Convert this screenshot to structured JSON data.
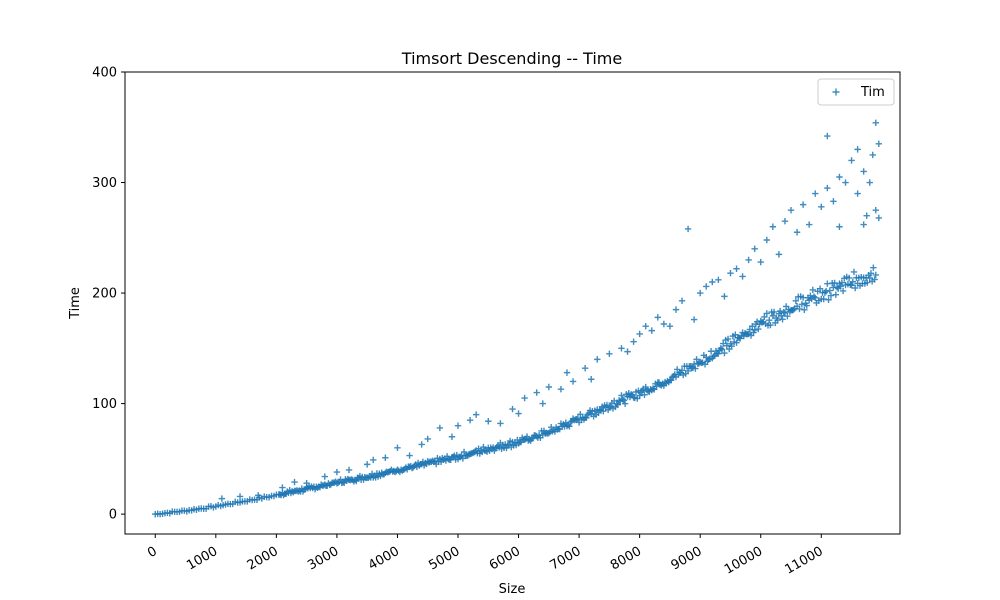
{
  "chart_data": {
    "type": "scatter",
    "title": "Timsort Descending -- Time",
    "xlabel": "Size",
    "ylabel": "Time",
    "xlim": [
      -500,
      12300
    ],
    "ylim": [
      -18,
      400
    ],
    "x_ticks": [
      0,
      1000,
      2000,
      3000,
      4000,
      5000,
      6000,
      7000,
      8000,
      9000,
      10000,
      11000
    ],
    "y_ticks": [
      0,
      100,
      200,
      300,
      400
    ],
    "x_tick_labels": [
      "0",
      "1000",
      "2000",
      "3000",
      "4000",
      "5000",
      "6000",
      "7000",
      "8000",
      "9000",
      "10000",
      "11000"
    ],
    "y_tick_labels": [
      "0",
      "100",
      "200",
      "300",
      "400"
    ],
    "x_tick_rotation": 30,
    "grid": false,
    "legend": {
      "position": "top-right",
      "entries": [
        "Tim"
      ]
    },
    "marker": "+",
    "color": "#1f77b4",
    "series": [
      {
        "name": "Tim",
        "baseline_curve": {
          "x": [
            0,
            500,
            1000,
            1500,
            2000,
            2500,
            3000,
            3500,
            4000,
            4500,
            5000,
            5500,
            6000,
            6500,
            7000,
            7500,
            8000,
            8500,
            9000,
            9500,
            10000,
            10500,
            11000,
            11500,
            11900
          ],
          "y": [
            0,
            3,
            7,
            12,
            17,
            22,
            28,
            33,
            39,
            45,
            51,
            58,
            64,
            73,
            85,
            97,
            108,
            121,
            136,
            152,
            171,
            184,
            196,
            207,
            216
          ]
        },
        "outliers": [
          [
            1100,
            14
          ],
          [
            1400,
            16
          ],
          [
            1700,
            17
          ],
          [
            2100,
            24
          ],
          [
            2300,
            29
          ],
          [
            2500,
            28
          ],
          [
            2800,
            34
          ],
          [
            3000,
            38
          ],
          [
            3200,
            40
          ],
          [
            3500,
            45
          ],
          [
            3600,
            49
          ],
          [
            3800,
            51
          ],
          [
            4000,
            60
          ],
          [
            4200,
            53
          ],
          [
            4400,
            63
          ],
          [
            4500,
            68
          ],
          [
            4700,
            78
          ],
          [
            4900,
            70
          ],
          [
            5000,
            80
          ],
          [
            5200,
            85
          ],
          [
            5300,
            90
          ],
          [
            5500,
            84
          ],
          [
            5700,
            82
          ],
          [
            5900,
            95
          ],
          [
            6000,
            91
          ],
          [
            6100,
            105
          ],
          [
            6300,
            110
          ],
          [
            6400,
            100
          ],
          [
            6500,
            115
          ],
          [
            6700,
            113
          ],
          [
            6800,
            128
          ],
          [
            6900,
            120
          ],
          [
            7100,
            132
          ],
          [
            7200,
            122
          ],
          [
            7300,
            140
          ],
          [
            7500,
            145
          ],
          [
            7700,
            150
          ],
          [
            7800,
            147
          ],
          [
            7900,
            156
          ],
          [
            8000,
            163
          ],
          [
            8100,
            170
          ],
          [
            8200,
            166
          ],
          [
            8300,
            178
          ],
          [
            8400,
            172
          ],
          [
            8500,
            170
          ],
          [
            8600,
            185
          ],
          [
            8700,
            193
          ],
          [
            8800,
            258
          ],
          [
            8900,
            176
          ],
          [
            9000,
            200
          ],
          [
            9100,
            206
          ],
          [
            9200,
            210
          ],
          [
            9300,
            212
          ],
          [
            9400,
            197
          ],
          [
            9500,
            218
          ],
          [
            9600,
            222
          ],
          [
            9700,
            215
          ],
          [
            9800,
            230
          ],
          [
            9900,
            240
          ],
          [
            10000,
            228
          ],
          [
            10100,
            248
          ],
          [
            10200,
            260
          ],
          [
            10300,
            235
          ],
          [
            10400,
            265
          ],
          [
            10500,
            275
          ],
          [
            10600,
            255
          ],
          [
            10700,
            280
          ],
          [
            10800,
            262
          ],
          [
            10900,
            290
          ],
          [
            11000,
            278
          ],
          [
            11100,
            295
          ],
          [
            11200,
            283
          ],
          [
            11300,
            305
          ],
          [
            11400,
            300
          ],
          [
            11500,
            320
          ],
          [
            11600,
            290
          ],
          [
            11700,
            310
          ],
          [
            11750,
            270
          ],
          [
            11800,
            300
          ],
          [
            11900,
            354
          ],
          [
            11850,
            325
          ],
          [
            11950,
            335
          ],
          [
            11100,
            342
          ],
          [
            11600,
            330
          ],
          [
            11300,
            260
          ],
          [
            11700,
            262
          ],
          [
            11900,
            275
          ],
          [
            11950,
            268
          ]
        ]
      }
    ]
  }
}
